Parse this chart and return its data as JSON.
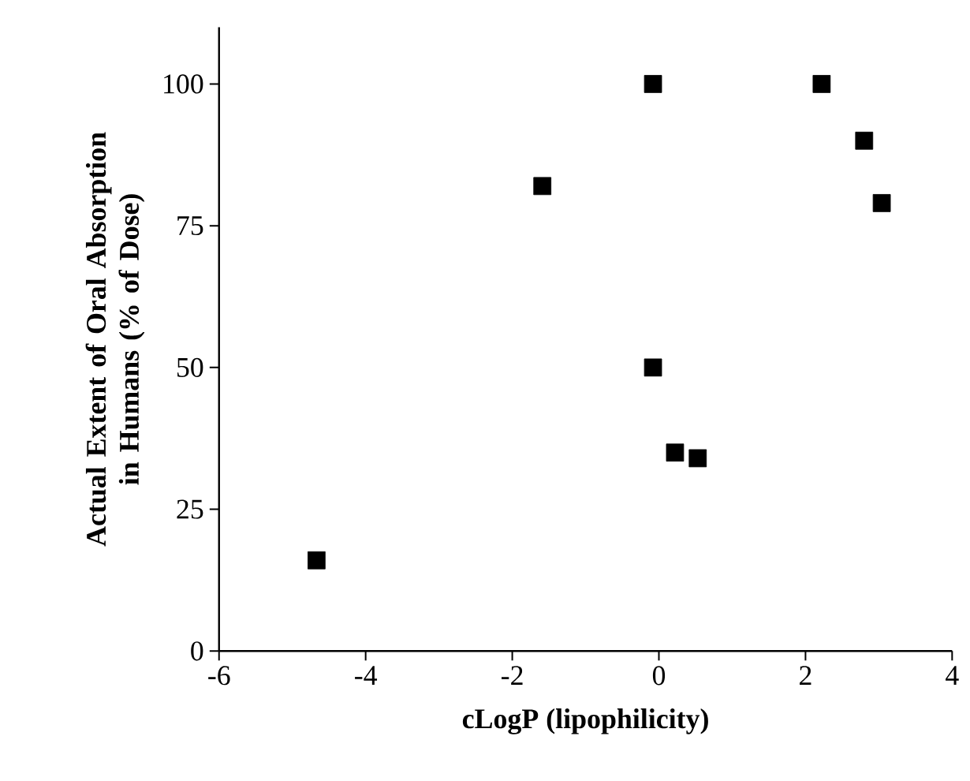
{
  "chart_data": {
    "type": "scatter",
    "xlabel": "cLogP (lipophilicity)",
    "ylabel": "Actual Extent of Oral Absorption\nin Humans (% of Dose)",
    "x": [
      -4.67,
      -1.59,
      -0.08,
      -0.08,
      0.22,
      0.53,
      2.22,
      2.8,
      3.04
    ],
    "values": [
      16,
      82,
      100,
      50,
      35,
      34,
      100,
      90,
      79
    ],
    "color": "#000000",
    "marker": "square",
    "xlim": [
      -6,
      4
    ],
    "ylim": [
      0,
      110
    ],
    "xticks": [
      {
        "value": -6,
        "label": "-6"
      },
      {
        "value": -4,
        "label": "-4"
      },
      {
        "value": -2,
        "label": "-2"
      },
      0,
      2,
      4
    ],
    "yticks": [
      0,
      25,
      50,
      75,
      100
    ],
    "grid": false
  }
}
